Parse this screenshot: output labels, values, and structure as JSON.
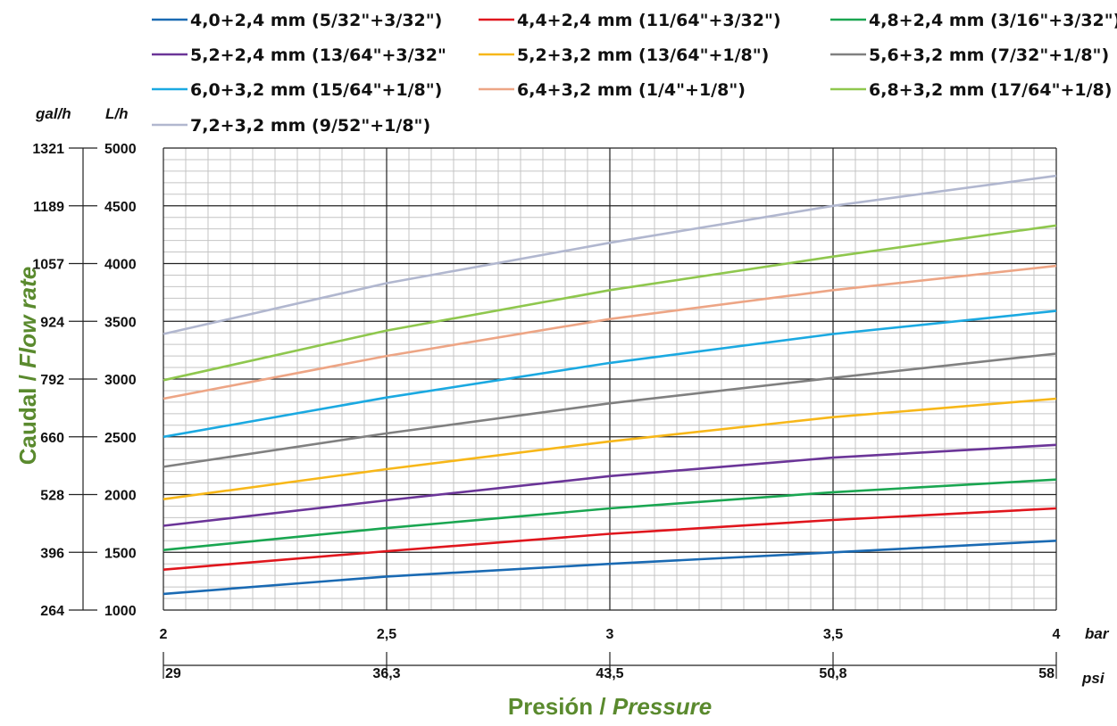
{
  "chart_data": {
    "type": "line",
    "x_primary": {
      "unit": "bar",
      "ticks": [
        "2",
        "2,5",
        "3",
        "3,5",
        "4"
      ],
      "range": [
        2,
        4
      ]
    },
    "x_secondary": {
      "unit": "psi",
      "ticks": [
        "29",
        "36,3",
        "43,5",
        "50,8",
        "58"
      ]
    },
    "y_primary": {
      "unit": "L/h",
      "ticks": [
        "1000",
        "1500",
        "2000",
        "2500",
        "3000",
        "3500",
        "4000",
        "4500",
        "5000"
      ],
      "range": [
        1000,
        5000
      ]
    },
    "y_secondary": {
      "unit": "gal/h",
      "ticks": [
        "264",
        "396",
        "528",
        "660",
        "792",
        "924",
        "1057",
        "1189",
        "1321"
      ]
    },
    "x_title": {
      "primary": "Presión",
      "separator": " / ",
      "secondary": "Pressure"
    },
    "y_title": {
      "primary": "Caudal",
      "separator": " / ",
      "secondary": "Flow rate"
    },
    "grid": true,
    "legend_position": "top",
    "series": [
      {
        "name": "4,0+2,4 mm (5/32\"+3/32\")",
        "color": "#1a6ab3",
        "x": [
          2,
          2.5,
          3,
          3.5,
          4
        ],
        "y": [
          1140,
          1290,
          1400,
          1500,
          1600
        ]
      },
      {
        "name": "4,4+2,4 mm (11/64\"+3/32\")",
        "color": "#e0161d",
        "x": [
          2,
          2.5,
          3,
          3.5,
          4
        ],
        "y": [
          1350,
          1510,
          1660,
          1780,
          1880
        ]
      },
      {
        "name": "4,8+2,4 mm (3/16\"+3/32\")",
        "color": "#1aa651",
        "x": [
          2,
          2.5,
          3,
          3.5,
          4
        ],
        "y": [
          1520,
          1710,
          1880,
          2020,
          2130
        ]
      },
      {
        "name": "5,2+2,4 mm (13/64\"+3/32\"",
        "color": "#6b3598",
        "x": [
          2,
          2.5,
          3,
          3.5,
          4
        ],
        "y": [
          1730,
          1950,
          2160,
          2320,
          2430
        ]
      },
      {
        "name": "5,2+3,2 mm (13/64\"+1/8\")",
        "color": "#f7b719",
        "x": [
          2,
          2.5,
          3,
          3.5,
          4
        ],
        "y": [
          1960,
          2220,
          2460,
          2670,
          2830
        ]
      },
      {
        "name": "5,6+3,2 mm (7/32\"+1/8\")",
        "color": "#808080",
        "x": [
          2,
          2.5,
          3,
          3.5,
          4
        ],
        "y": [
          2240,
          2530,
          2790,
          3010,
          3220
        ]
      },
      {
        "name": "6,0+3,2 mm (15/64\"+1/8\")",
        "color": "#1ba9e1",
        "x": [
          2,
          2.5,
          3,
          3.5,
          4
        ],
        "y": [
          2500,
          2840,
          3140,
          3390,
          3590
        ]
      },
      {
        "name": "6,4+3,2 mm (1/4\"+1/8\")",
        "color": "#eda585",
        "x": [
          2,
          2.5,
          3,
          3.5,
          4
        ],
        "y": [
          2830,
          3200,
          3520,
          3770,
          3980
        ]
      },
      {
        "name": "6,8+3,2 mm (17/64\"+1/8)",
        "color": "#8fc74e",
        "x": [
          2,
          2.5,
          3,
          3.5,
          4
        ],
        "y": [
          2990,
          3420,
          3770,
          4060,
          4330
        ]
      },
      {
        "name": "7,2+3,2 mm (9/52\"+1/8\")",
        "color": "#b1b7cf",
        "x": [
          2,
          2.5,
          3,
          3.5,
          4
        ],
        "y": [
          3390,
          3830,
          4180,
          4500,
          4760
        ]
      }
    ]
  }
}
